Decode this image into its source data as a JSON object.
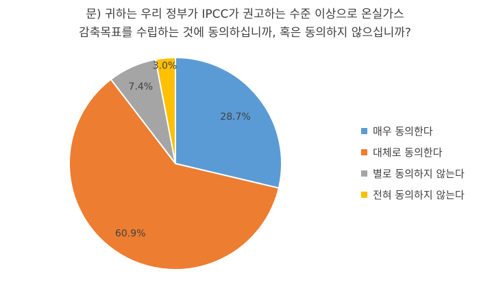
{
  "chart_data": {
    "type": "pie",
    "title_lines": [
      "문) 귀하는 우리 정부가 IPCC가 권고하는 수준 이상으로 온실가스",
      "감축목표를 수립하는 것에 동의하십니까, 혹은 동의하지 않으십니까?"
    ],
    "slices": [
      {
        "label": "매우 동의한다",
        "value": 28.7,
        "value_label": "28.7%",
        "color": "#5B9BD5"
      },
      {
        "label": "대체로 동의한다",
        "value": 60.9,
        "value_label": "60.9%",
        "color": "#ED7D31"
      },
      {
        "label": "별로 동의하지 않는다",
        "value": 7.4,
        "value_label": "7.4%",
        "color": "#A5A5A5"
      },
      {
        "label": "전혀 동의하지 않는다",
        "value": 3.0,
        "value_label": "3.0%",
        "color": "#FFC000"
      }
    ],
    "legend_position": "right",
    "start_angle": "12 o'clock",
    "direction": "clockwise"
  }
}
